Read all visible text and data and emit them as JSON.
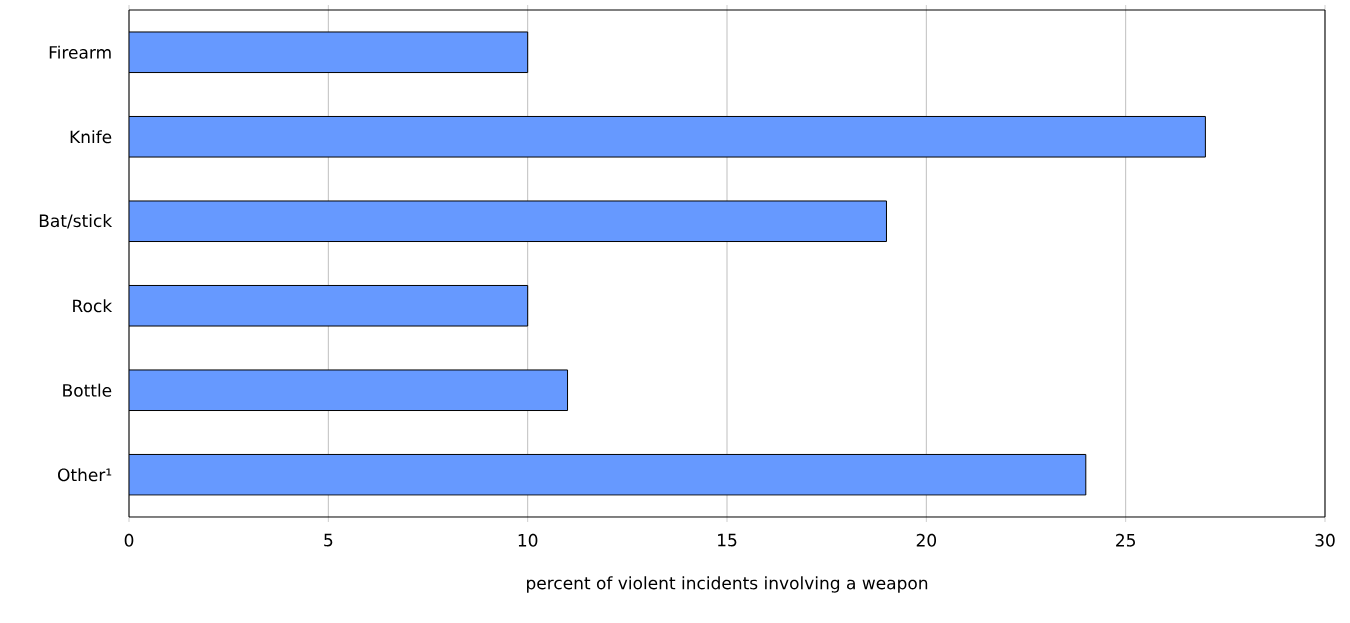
{
  "chart_data": {
    "type": "bar",
    "orientation": "horizontal",
    "xlabel": "percent of violent incidents involving a weapon",
    "categories": [
      "Firearm",
      "Knife",
      "Bat/stick",
      "Rock",
      "Bottle",
      "Other¹"
    ],
    "values": [
      10,
      27,
      19,
      10,
      11,
      24
    ],
    "color": "#6699ff",
    "xlim": [
      0,
      30
    ],
    "xticks": [
      0,
      5,
      10,
      15,
      20,
      25,
      30
    ],
    "grid": "x"
  }
}
